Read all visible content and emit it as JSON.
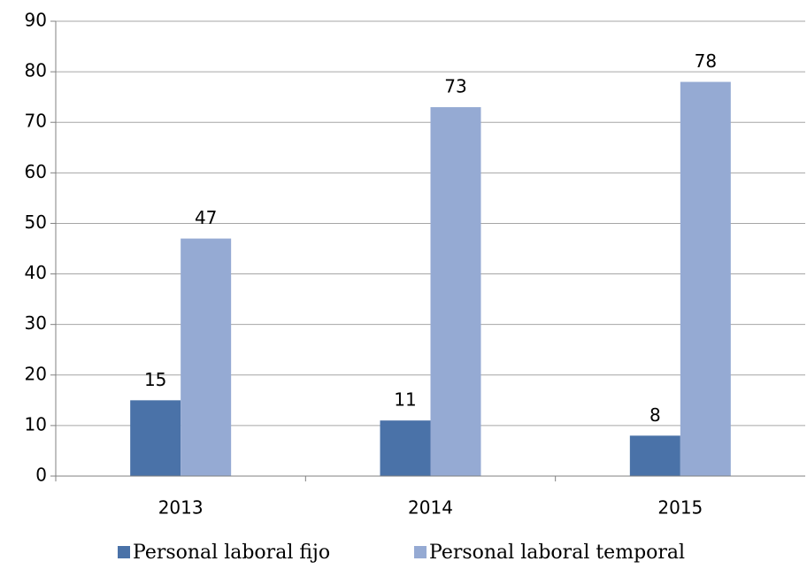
{
  "chart_data": {
    "type": "bar",
    "categories": [
      "2013",
      "2014",
      "2015"
    ],
    "series": [
      {
        "name": "Personal laboral fijo",
        "color": "#4a72a8",
        "values": [
          15,
          11,
          8
        ]
      },
      {
        "name": "Personal laboral temporal",
        "color": "#95aad3",
        "values": [
          47,
          73,
          78
        ]
      }
    ],
    "ylim": [
      0,
      90
    ],
    "yticks": [
      0,
      10,
      20,
      30,
      40,
      50,
      60,
      70,
      80,
      90
    ],
    "grid": true,
    "legend": "bottom"
  }
}
